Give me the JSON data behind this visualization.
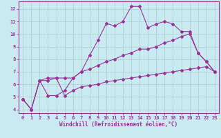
{
  "bg_color": "#c8eaf0",
  "grid_color": "#aacccc",
  "line_color": "#993399",
  "xlabel": "Windchill (Refroidissement éolien,°C)",
  "xlim": [
    -0.5,
    23.5
  ],
  "ylim": [
    3.7,
    12.6
  ],
  "xticks": [
    0,
    1,
    2,
    3,
    4,
    5,
    6,
    7,
    8,
    9,
    10,
    11,
    12,
    13,
    14,
    15,
    16,
    17,
    18,
    19,
    20,
    21,
    22,
    23
  ],
  "yticks": [
    4,
    5,
    6,
    7,
    8,
    9,
    10,
    11,
    12
  ],
  "line1_x": [
    0,
    1,
    2,
    3,
    4,
    5,
    6,
    7,
    8,
    9,
    10,
    11,
    12,
    13,
    14,
    15,
    16,
    17,
    18,
    19,
    20,
    21,
    22,
    23
  ],
  "line1_y": [
    4.8,
    4.0,
    6.3,
    5.1,
    5.1,
    5.5,
    6.5,
    7.0,
    8.3,
    9.5,
    10.85,
    10.65,
    11.0,
    12.2,
    12.2,
    10.5,
    10.8,
    11.0,
    10.8,
    10.2,
    10.2,
    8.5,
    7.8,
    7.0
  ],
  "line2_x": [
    0,
    1,
    2,
    3,
    4,
    5,
    6,
    7,
    8,
    9,
    10,
    11,
    12,
    13,
    14,
    15,
    16,
    17,
    18,
    19,
    20,
    21,
    22,
    23
  ],
  "line2_y": [
    4.8,
    4.0,
    6.3,
    6.5,
    6.5,
    6.5,
    6.5,
    7.0,
    7.2,
    7.5,
    7.8,
    8.0,
    8.3,
    8.5,
    8.8,
    8.8,
    9.0,
    9.3,
    9.5,
    9.8,
    10.0,
    8.5,
    7.8,
    7.0
  ],
  "line3_x": [
    0,
    1,
    2,
    3,
    4,
    5,
    6,
    7,
    8,
    9,
    10,
    11,
    12,
    13,
    14,
    15,
    16,
    17,
    18,
    19,
    20,
    21,
    22,
    23
  ],
  "line3_y": [
    4.8,
    4.0,
    6.3,
    6.3,
    6.5,
    5.1,
    5.5,
    5.8,
    5.9,
    6.0,
    6.2,
    6.3,
    6.4,
    6.5,
    6.6,
    6.7,
    6.8,
    6.9,
    7.0,
    7.1,
    7.2,
    7.3,
    7.4,
    7.0
  ]
}
